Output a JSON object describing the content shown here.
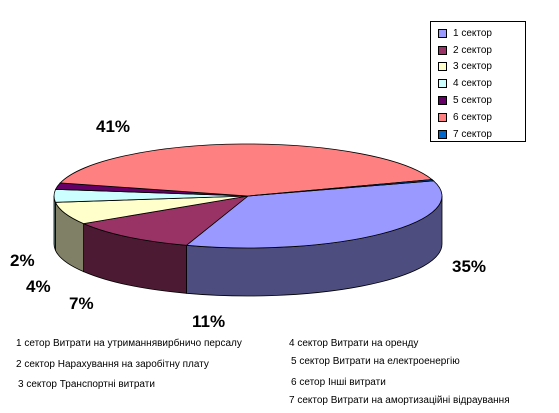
{
  "chart_data": {
    "type": "pie",
    "three_d": true,
    "slices": [
      {
        "legend": "1 сектор",
        "value": 35,
        "label": "35%",
        "color": "#9999FF"
      },
      {
        "legend": "2 сектор",
        "value": 11,
        "label": "11%",
        "color": "#993366"
      },
      {
        "legend": "3 сектор",
        "value": 7,
        "label": "7%",
        "color": "#FFFFCC"
      },
      {
        "legend": "4 сектор",
        "value": 4,
        "label": "4%",
        "color": "#CCFFFF"
      },
      {
        "legend": "5 сектор",
        "value": 2,
        "label": "2%",
        "color": "#660066"
      },
      {
        "legend": "6 сектор",
        "value": 41,
        "label": "41%",
        "color": "#FF8080"
      },
      {
        "legend": "7 сектор",
        "value": 0.4,
        "label": "",
        "color": "#0066CC"
      }
    ],
    "legend_position": "top-right"
  },
  "descriptions": [
    "1 сетор Витрати на утриманнявирбничо персалу",
    "2 сектор Нарахування на заробітну плату",
    "3 сектор Транспортні витрати",
    "4 сектор Витрати на оренду",
    "5 сектор Витрати на електроенергію",
    "6 сетор Інші витрати",
    "7 сектор Витрати на амортизаційні відраування"
  ]
}
